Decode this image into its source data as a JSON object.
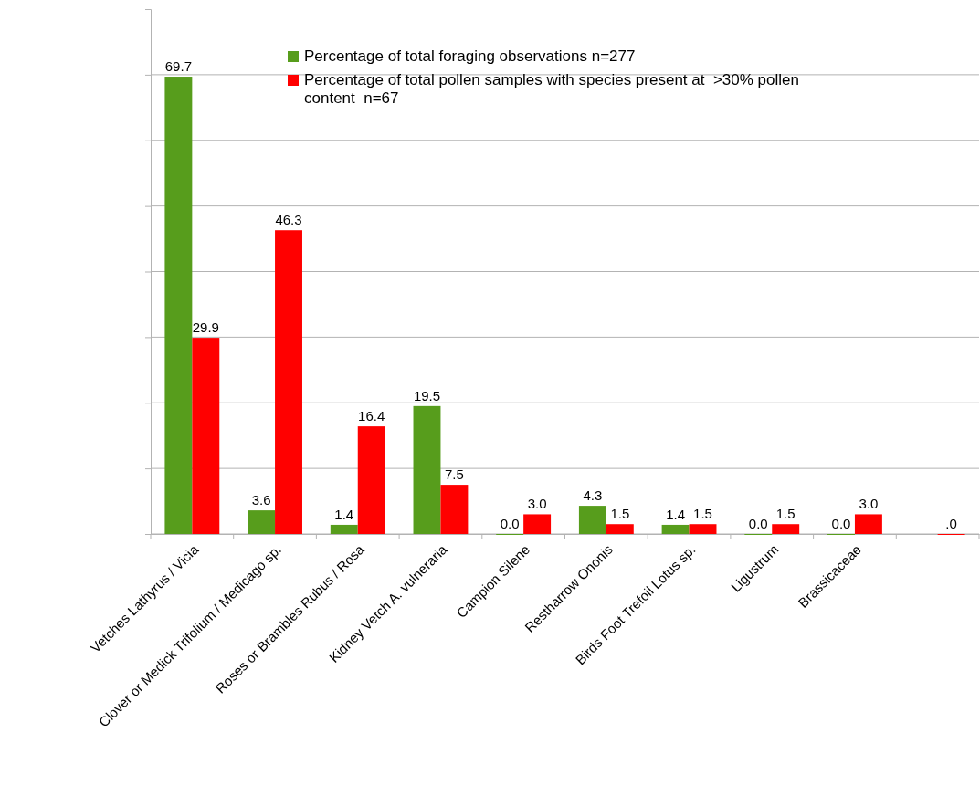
{
  "chart_data": {
    "type": "bar",
    "categories": [
      "Vetches Lathyrus / Vicia",
      "Clover or Medick Trifolium / Medicago sp.",
      "Roses or Brambles Rubus / Rosa",
      "Kidney Vetch A. vulneraria",
      "Campion Silene",
      "Restharrow Ononis",
      "Birds Foot Trefoil Lotus sp.",
      "Ligustrum",
      "Brassicaceae",
      null
    ],
    "series": [
      {
        "name": "Percentage of total foraging observations n=277",
        "color": "#579d1c",
        "values": [
          69.7,
          3.6,
          1.4,
          19.5,
          0.0,
          4.3,
          1.4,
          0.0,
          0.0,
          null
        ],
        "value_labels": [
          "69.7",
          "3.6",
          "1.4",
          "19.5",
          "0.0",
          "4.3",
          "1.4",
          "0.0",
          "0.0",
          null
        ]
      },
      {
        "name": "Percentage of total pollen samples with species present at  >30% pollen content  n=67",
        "color": "#ff0000",
        "values": [
          29.9,
          46.3,
          16.4,
          7.5,
          3.0,
          1.5,
          1.5,
          1.5,
          3.0,
          0
        ],
        "value_labels": [
          "29.9",
          "46.3",
          "16.4",
          "7.5",
          "3.0",
          "1.5",
          "1.5",
          "1.5",
          "3.0",
          ".0"
        ]
      }
    ],
    "ylim": [
      0,
      80
    ],
    "yticks": [
      {
        "value": 0,
        "label": null
      },
      {
        "value": 10,
        "label": null
      },
      {
        "value": 20,
        "label": null
      },
      {
        "value": 30,
        "label": null
      },
      {
        "value": 40,
        "label": null
      },
      {
        "value": 50,
        "label": null
      },
      {
        "value": 60,
        "label": null
      },
      {
        "value": 70,
        "label": null
      }
    ],
    "tick_labels": "x",
    "grid": "y",
    "legend": "top"
  }
}
